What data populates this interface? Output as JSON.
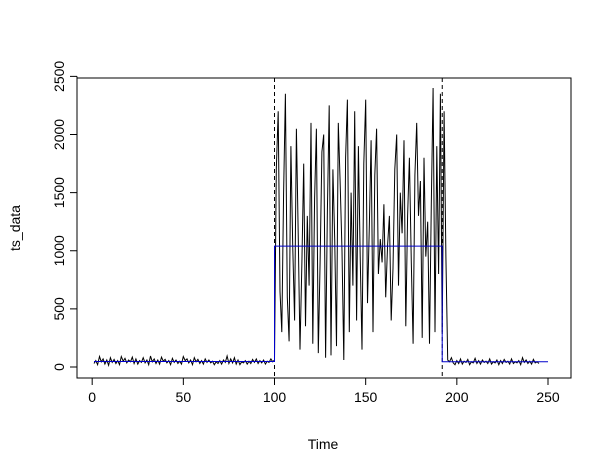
{
  "chart_data": {
    "type": "line",
    "title": "",
    "xlabel": "Time",
    "ylabel": "ts_data",
    "xlim": [
      1,
      250
    ],
    "ylim": [
      0,
      2400
    ],
    "xticks": [
      0,
      50,
      100,
      150,
      200,
      250
    ],
    "yticks": [
      0,
      500,
      1000,
      1500,
      2000,
      2500
    ],
    "changepoints": [
      100,
      192
    ],
    "colors": {
      "series": "#000000",
      "mean": "#0000cc",
      "changepoint": "#000000"
    },
    "series": [
      {
        "values": [
          30,
          55,
          20,
          90,
          45,
          70,
          25,
          60,
          15,
          80,
          40,
          65,
          30,
          55,
          20,
          90,
          50,
          75,
          35,
          60,
          45,
          85,
          30,
          70,
          25,
          55,
          40,
          80,
          35,
          60,
          20,
          95,
          45,
          70,
          30,
          60,
          25,
          85,
          50,
          65,
          35,
          55,
          20,
          75,
          40,
          60,
          30,
          50,
          25,
          90,
          55,
          70,
          35,
          60,
          20,
          80,
          45,
          65,
          30,
          55,
          25,
          70,
          40,
          60,
          35,
          50,
          20,
          45,
          30,
          55,
          25,
          60,
          40,
          95,
          30,
          70,
          35,
          80,
          25,
          60,
          20,
          45,
          35,
          55,
          25,
          50,
          30,
          65,
          40,
          70,
          30,
          55,
          35,
          60,
          25,
          50,
          40,
          70,
          45,
          60,
          1700,
          2200,
          650,
          300,
          1500,
          2350,
          600,
          220,
          1900,
          1050,
          400,
          2050,
          1150,
          150,
          900,
          1750,
          350,
          1300,
          700,
          2100,
          200,
          1450,
          2050,
          120,
          900,
          1850,
          2000,
          80,
          1350,
          2250,
          100,
          1700,
          1100,
          180,
          2100,
          1600,
          1000,
          60,
          1800,
          2300,
          300,
          1500,
          700,
          2200,
          400,
          1900,
          950,
          150,
          1750,
          2300,
          550,
          1200,
          1950,
          300,
          1650,
          2050,
          800,
          1100,
          900,
          1400,
          600,
          1050,
          1300,
          400,
          850,
          1700,
          2000,
          700,
          1500,
          1150,
          1950,
          350,
          1300,
          1800,
          900,
          200,
          1650,
          2100,
          1300,
          1600,
          250,
          1800,
          950,
          1250,
          200,
          1400,
          2400,
          300,
          1900,
          800,
          2350,
          300,
          2200,
          950,
          60,
          45,
          80,
          35,
          20,
          55,
          30,
          70,
          25,
          50,
          40,
          65,
          20,
          45,
          35,
          75,
          30,
          55,
          25,
          60,
          40,
          50,
          30,
          70,
          25,
          45,
          35,
          60,
          20,
          55,
          30,
          65,
          40,
          50,
          25,
          70,
          30,
          45,
          35,
          55,
          20,
          80,
          40,
          60,
          30,
          50,
          25,
          65,
          35,
          45,
          30
        ]
      },
      {
        "segments": [
          {
            "start": 1,
            "end": 100,
            "mean": 47
          },
          {
            "start": 100,
            "end": 192,
            "mean": 1040
          },
          {
            "start": 192,
            "end": 250,
            "mean": 45
          }
        ]
      }
    ]
  }
}
